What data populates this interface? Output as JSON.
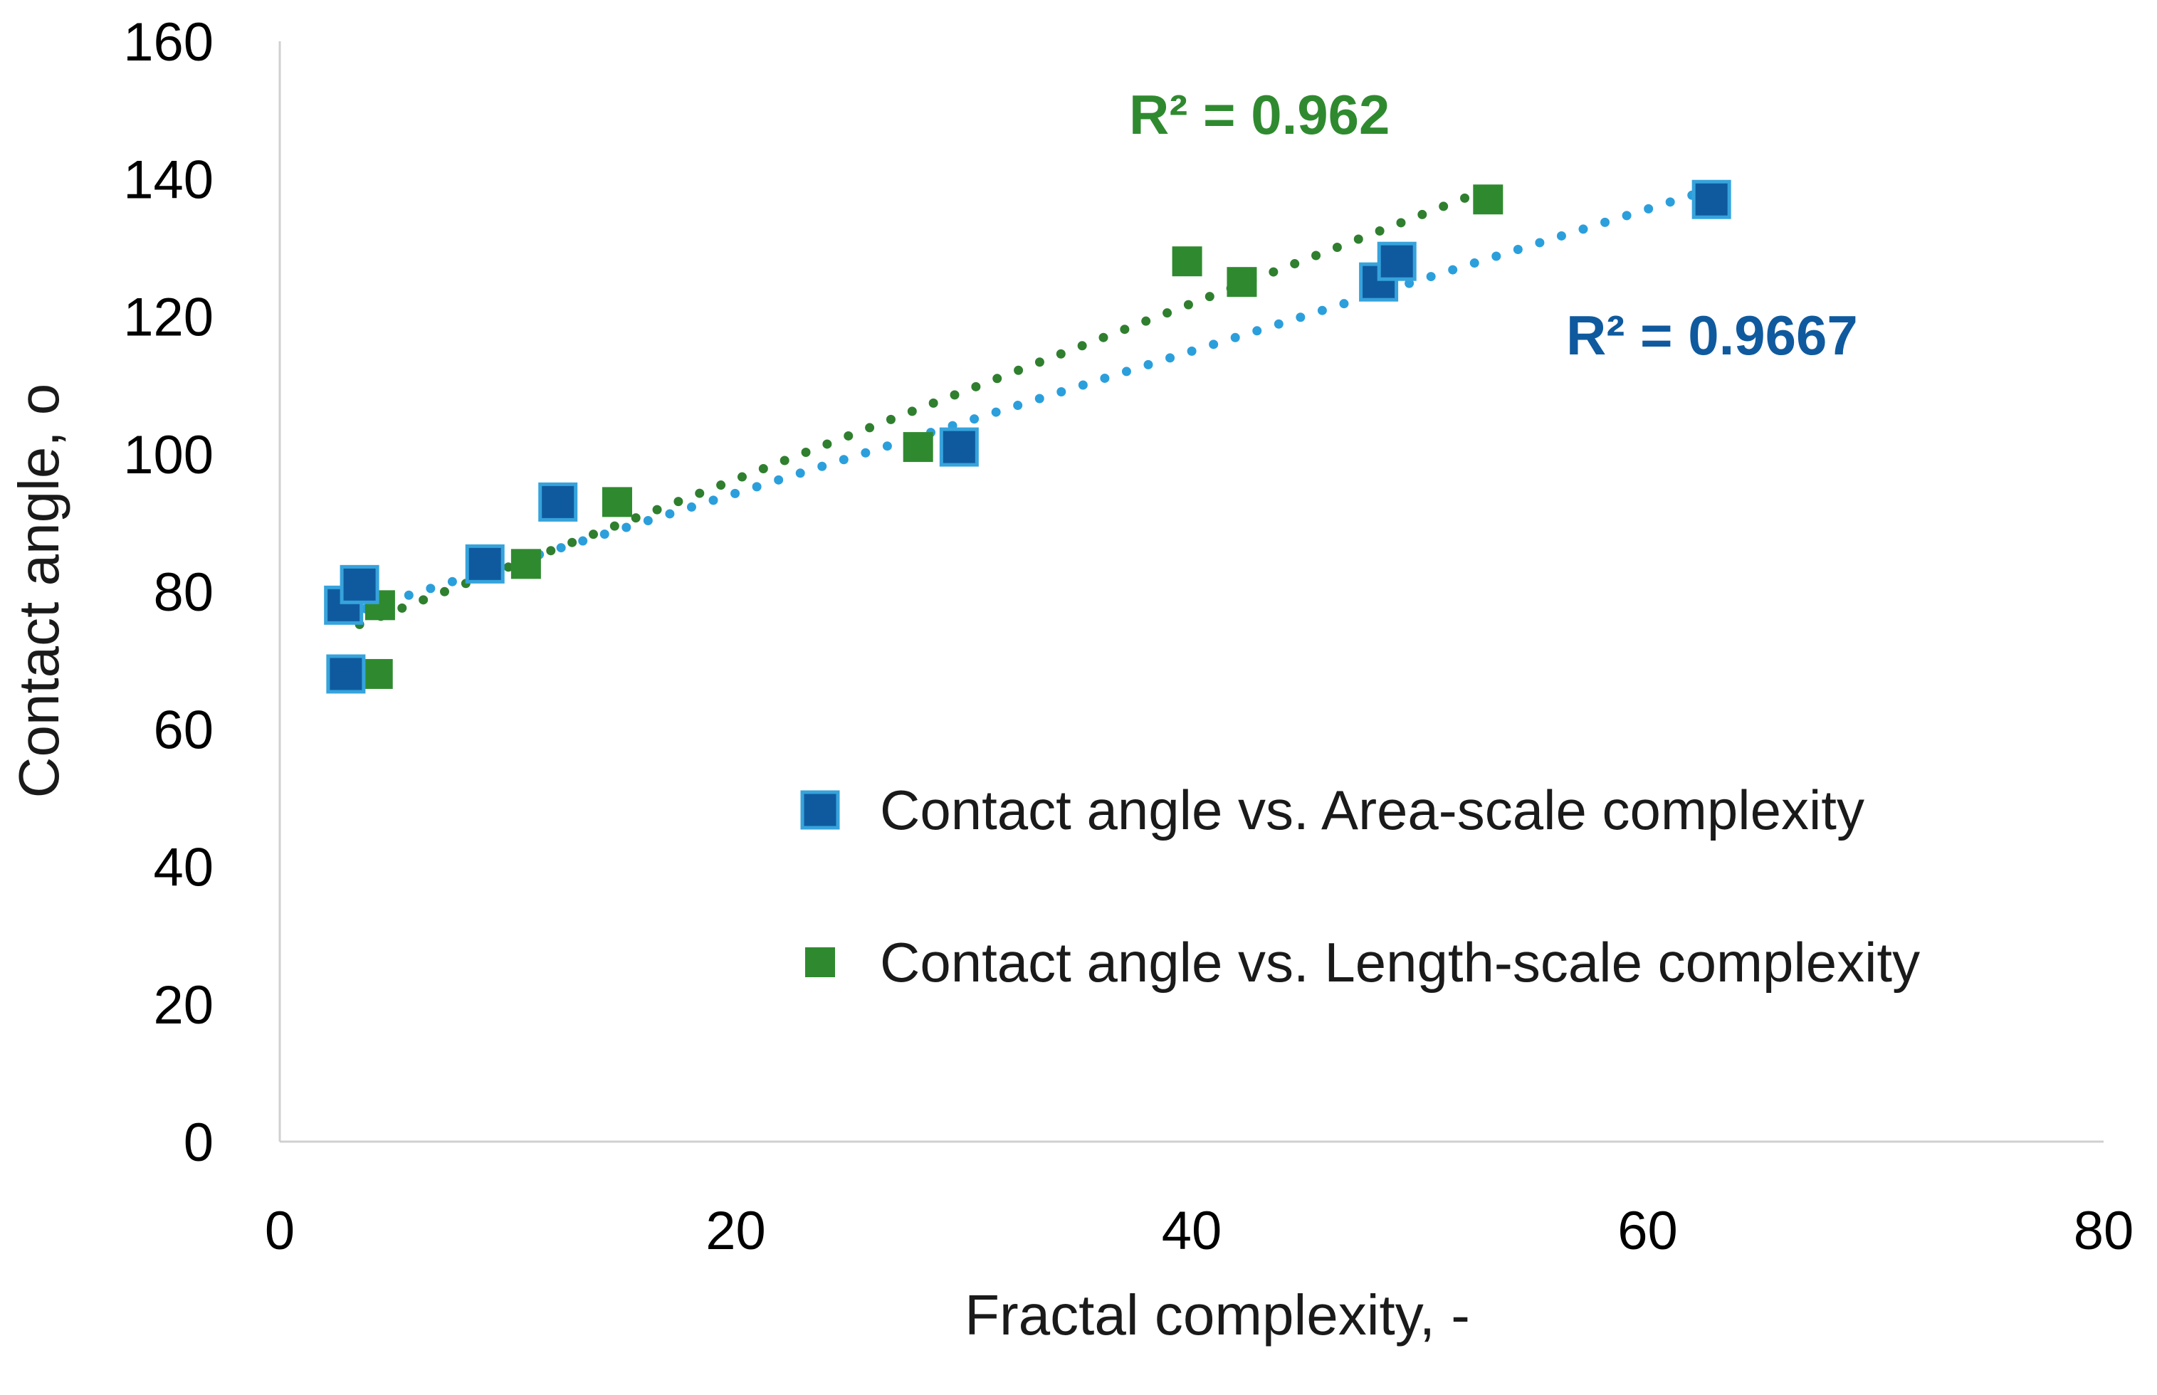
{
  "chart_data": {
    "type": "scatter",
    "title": "",
    "xlabel": "Fractal complexity, -",
    "ylabel": "Contact angle, o",
    "xlim": [
      0,
      80
    ],
    "ylim": [
      0,
      160
    ],
    "xticks": [
      0,
      20,
      40,
      60,
      80
    ],
    "yticks": [
      0,
      20,
      40,
      60,
      80,
      100,
      120,
      140,
      160
    ],
    "grid": false,
    "legend_position": "center-right",
    "series": [
      {
        "name": "Contact angle vs. Area-scale complexity",
        "color": "#0f5a9e",
        "edge_color": "#36a3dc",
        "trend_color": "#2b9fdc",
        "marker": "square",
        "x": [
          2.8,
          2.9,
          3.5,
          9.0,
          12.2,
          29.8,
          48.2,
          49.0,
          62.8
        ],
        "y": [
          78,
          68,
          81,
          84,
          93,
          101,
          125,
          128,
          137
        ],
        "trendline": {
          "type": "linear",
          "x_range": [
            2.8,
            62.8
          ],
          "y_range": [
            76.5,
            138.5
          ]
        },
        "r2_label": "R² = 0.9667"
      },
      {
        "name": "Contact angle vs. Length-scale complexity",
        "color": "#2f8a2f",
        "edge_color": "#2f8a2f",
        "trend_color": "#2f7f2f",
        "marker": "square",
        "x": [
          3.5,
          4.4,
          4.3,
          10.8,
          14.8,
          28.0,
          39.8,
          42.2,
          53.0
        ],
        "y": [
          81,
          78,
          68,
          84,
          93,
          101,
          128,
          125,
          137
        ],
        "trendline": {
          "type": "linear",
          "x_range": [
            3.5,
            53.0
          ],
          "y_range": [
            75.2,
            138.5
          ]
        },
        "r2_label": "R² = 0.962"
      }
    ],
    "annotations": {
      "r2_green": "R² = 0.962",
      "r2_blue": "R² = 0.9667"
    }
  }
}
